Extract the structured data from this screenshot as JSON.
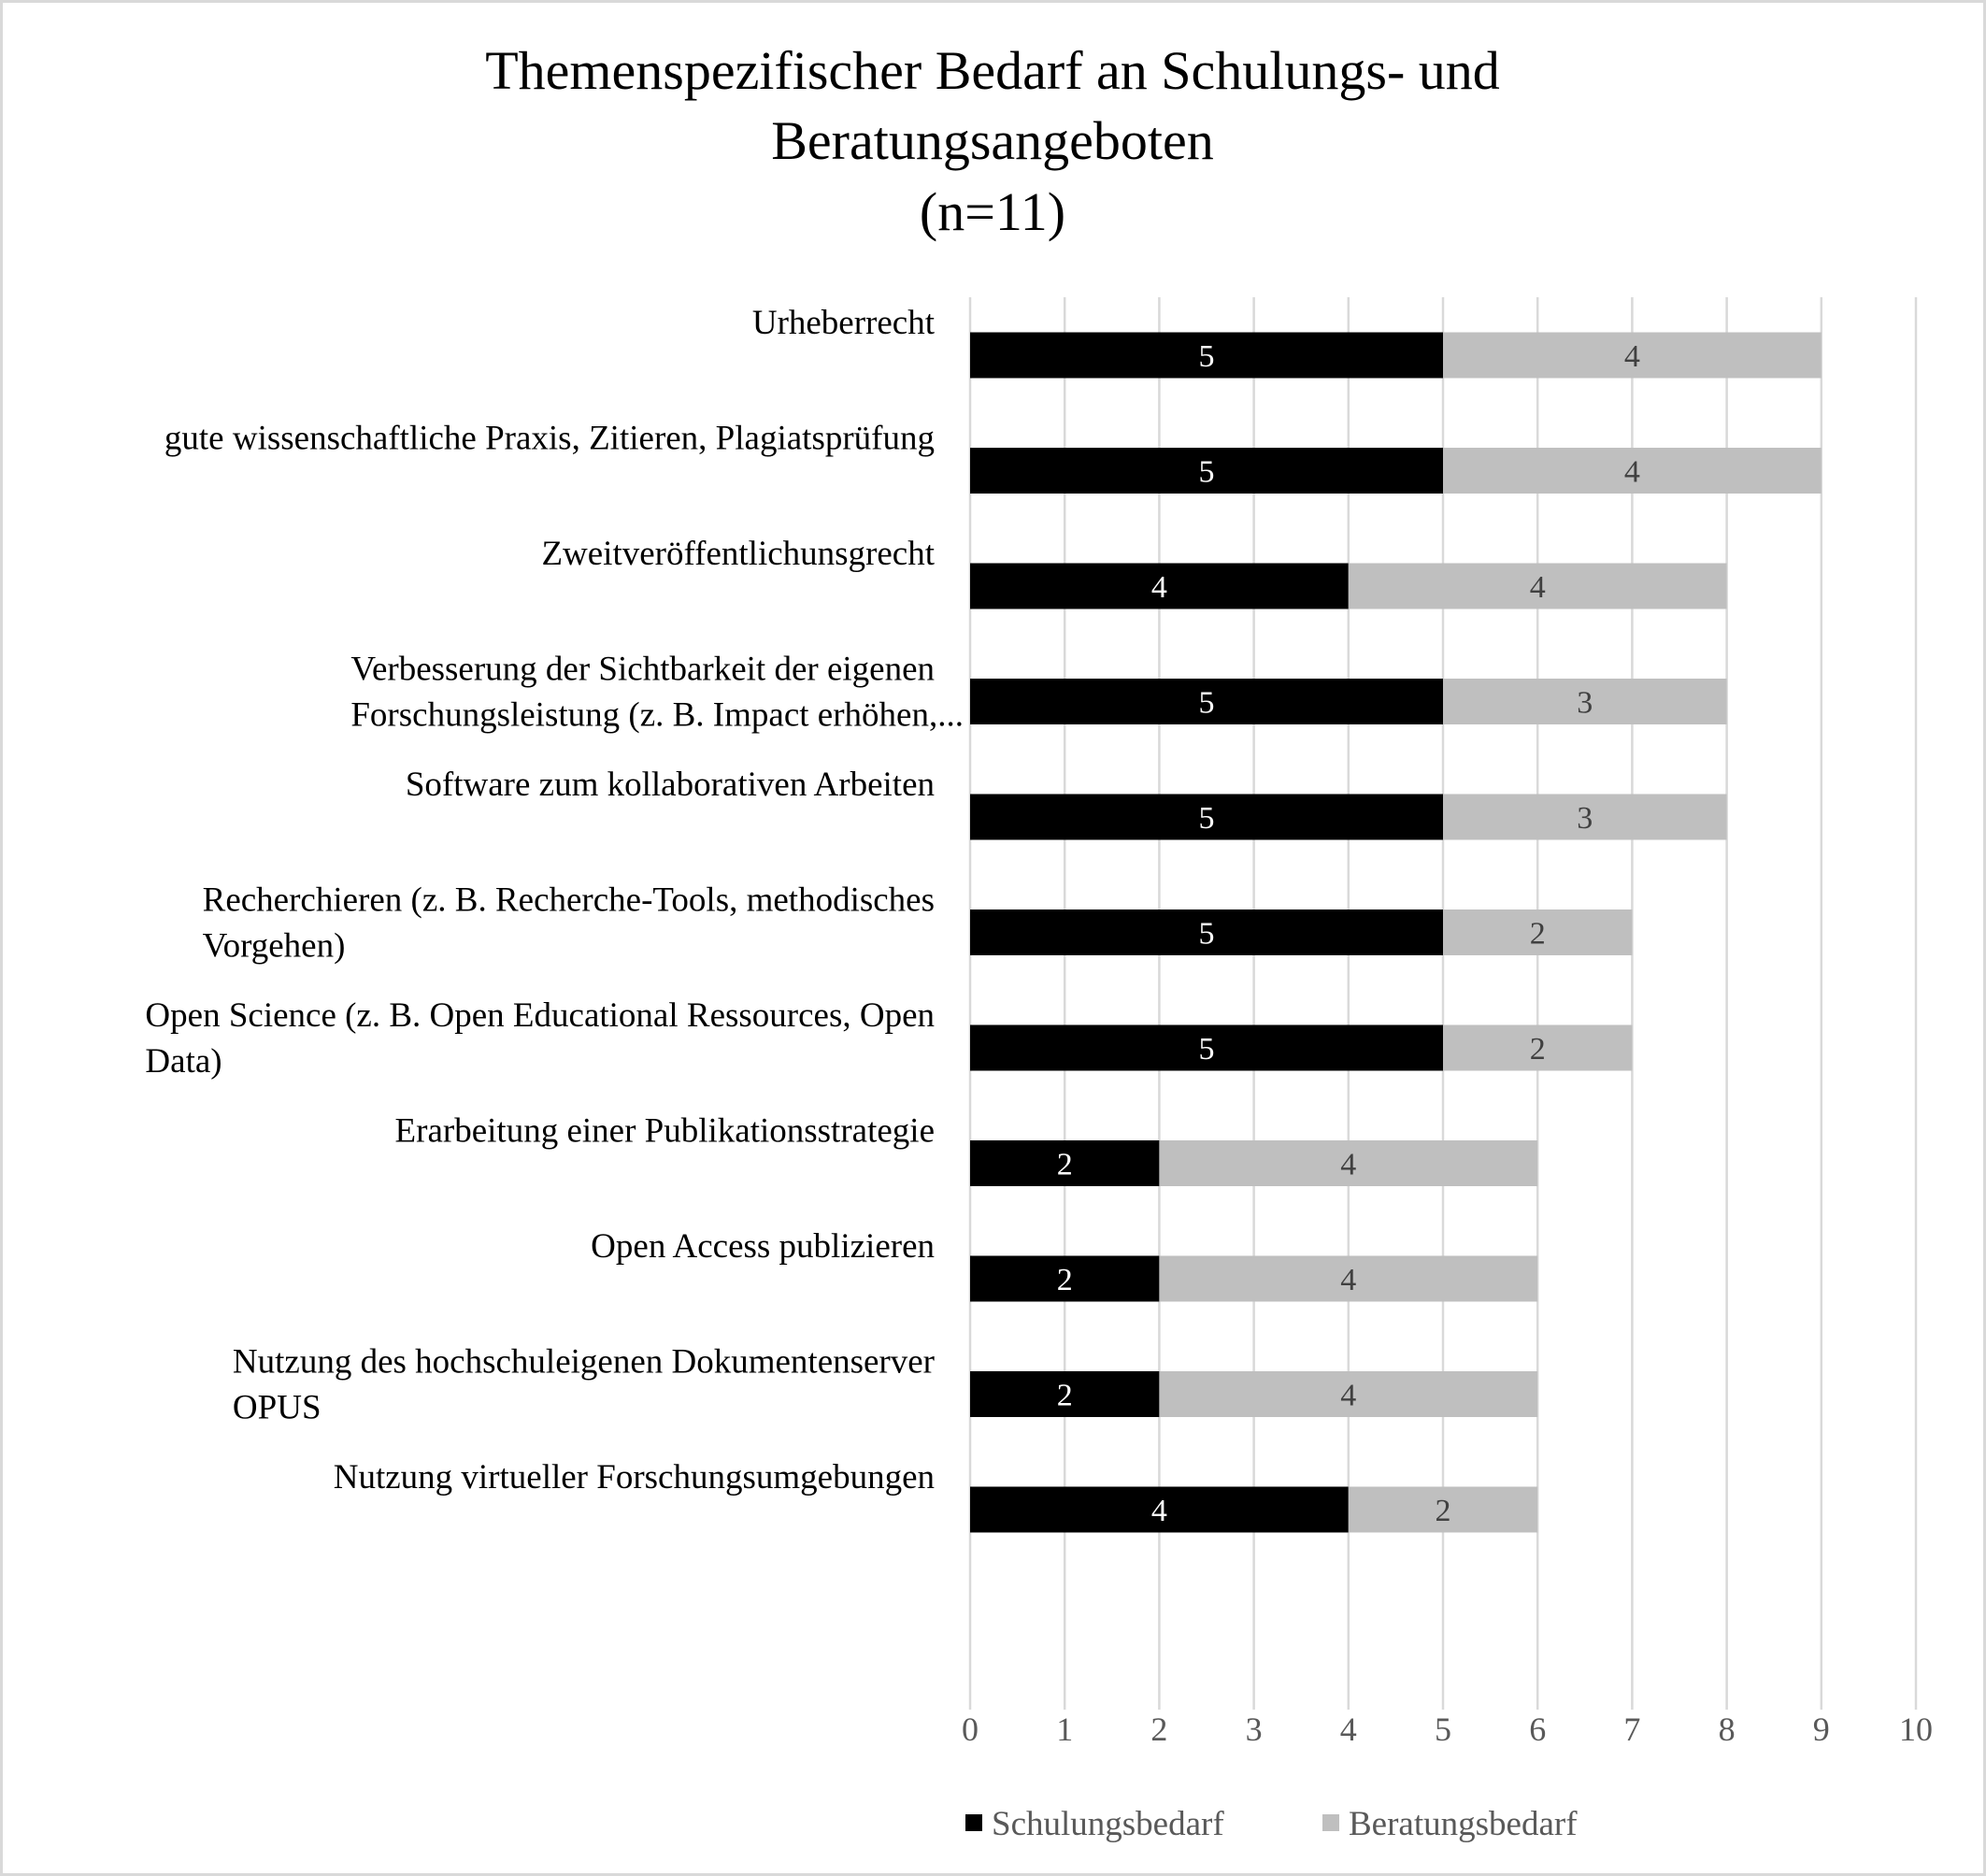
{
  "chart_data": {
    "type": "bar",
    "orientation": "horizontal",
    "stacked": true,
    "title": [
      "Themenspezifischer Bedarf an Schulungs- und",
      "Beratungsangeboten",
      "(n=11)"
    ],
    "categories": [
      [
        "Urheberrecht"
      ],
      [
        "gute wissenschaftliche Praxis, Zitieren, Plagiatsprüfung"
      ],
      [
        "Zweitveröffentlichunsgrecht"
      ],
      [
        "Verbesserung der Sichtbarkeit der eigenen",
        "Forschungsleistung (z. B. Impact erhöhen,..."
      ],
      [
        "Software zum kollaborativen Arbeiten"
      ],
      [
        "Recherchieren (z. B. Recherche-Tools, methodisches",
        "Vorgehen)"
      ],
      [
        "Open Science (z. B. Open Educational Ressources, Open",
        "Data)"
      ],
      [
        "Erarbeitung einer Publikationsstrategie"
      ],
      [
        "Open Access publizieren"
      ],
      [
        "Nutzung des hochschuleigenen Dokumentenserver",
        "OPUS"
      ],
      [
        "Nutzung virtueller Forschungsumgebungen"
      ]
    ],
    "series": [
      {
        "name": "Schulungsbedarf",
        "color": "#000000",
        "label_color": "#ffffff",
        "values": [
          5,
          5,
          4,
          5,
          5,
          5,
          5,
          2,
          2,
          2,
          4
        ]
      },
      {
        "name": "Beratungsbedarf",
        "color": "#bfbfbf",
        "label_color": "#404040",
        "values": [
          4,
          4,
          4,
          3,
          3,
          2,
          2,
          4,
          4,
          4,
          2
        ]
      }
    ],
    "xlim": [
      0,
      10
    ],
    "xticks": [
      "0",
      "1",
      "2",
      "3",
      "4",
      "5",
      "6",
      "7",
      "8",
      "9",
      "10"
    ],
    "grid": "vertical",
    "legend": "bottom",
    "data_labels": true
  }
}
